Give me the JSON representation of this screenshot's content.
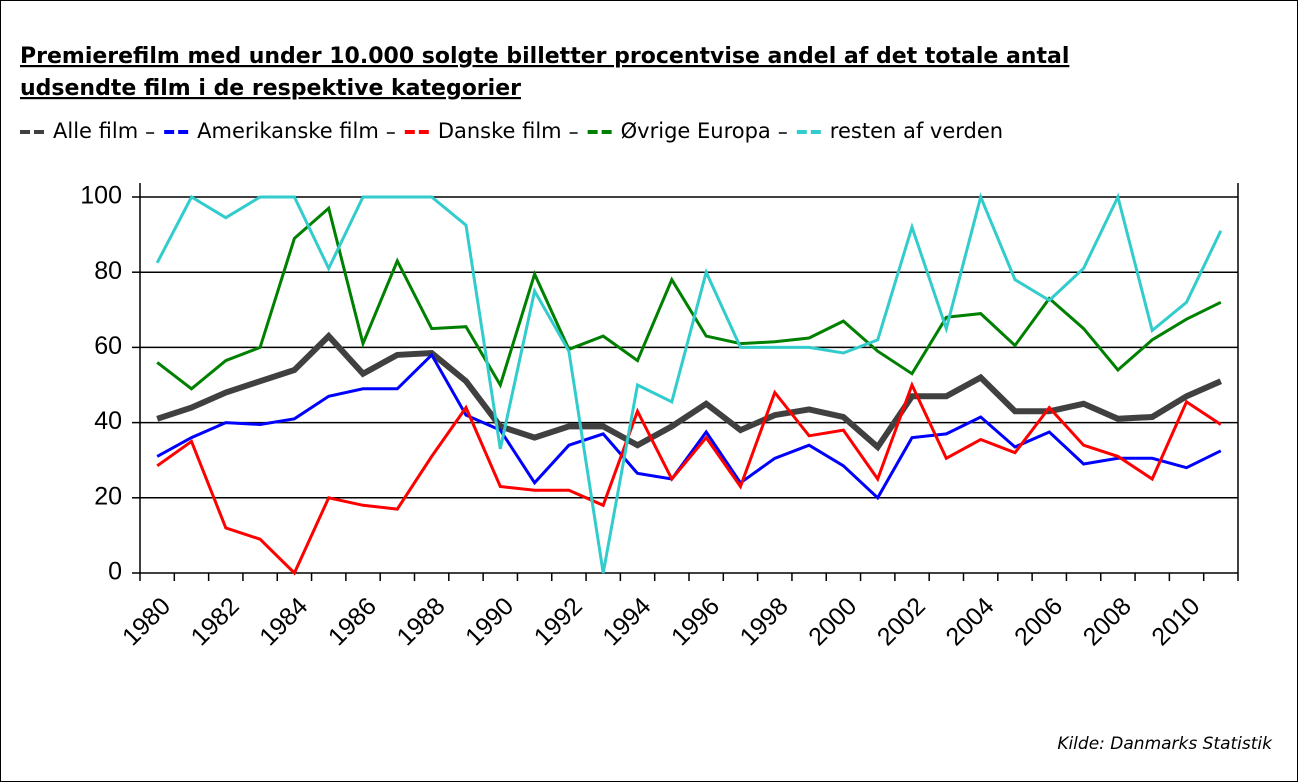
{
  "chart_data": {
    "type": "line",
    "title": [
      "Premierefilm med under 10.000 solgte billetter procentvise andel af det totale antal",
      "udsendte film i de respektive kategorier"
    ],
    "source": "Kilde: Danmarks Statistik",
    "categories": [
      "1980",
      null,
      "1982",
      null,
      "1984",
      null,
      "1986",
      null,
      "1988",
      null,
      "1990",
      null,
      "1992",
      null,
      "1994",
      null,
      "1996",
      null,
      "1998",
      null,
      "2000",
      null,
      "2002",
      null,
      "2004",
      null,
      "2006",
      null,
      "2008",
      null,
      "2010",
      null
    ],
    "ylim": [
      0,
      100
    ],
    "yticks": [
      0,
      20,
      40,
      60,
      80,
      100
    ],
    "grid": true,
    "series": [
      {
        "name": "Alle film",
        "color": "#404040",
        "width": 6,
        "values": [
          41,
          44,
          48,
          51,
          54,
          63,
          53,
          58,
          58.5,
          51,
          39,
          36,
          39,
          39,
          34,
          39,
          45,
          38,
          42,
          43.5,
          41.5,
          33.5,
          47,
          47,
          52,
          43,
          43,
          45,
          41,
          41.5,
          47,
          51
        ]
      },
      {
        "name": "Amerikanske film",
        "color": "#0000ff",
        "width": 3,
        "values": [
          31,
          36,
          40,
          39.5,
          41,
          47,
          49,
          49,
          58,
          42,
          38,
          24,
          34,
          37,
          26.5,
          25,
          37.5,
          24,
          30.5,
          34,
          28.5,
          20,
          36,
          37,
          41.5,
          33.5,
          37.5,
          29,
          30.5,
          30.5,
          28,
          32.5
        ]
      },
      {
        "name": "Danske film",
        "color": "#ff0000",
        "width": 3,
        "values": [
          28.5,
          35,
          12,
          9,
          0,
          20,
          18,
          17,
          31,
          44,
          23,
          22,
          22,
          18,
          43,
          25,
          36,
          23,
          48,
          36.5,
          38,
          25,
          50,
          30.5,
          35.5,
          32,
          44,
          34,
          31,
          25,
          45.5,
          39.5
        ]
      },
      {
        "name": "Øvrige Europa",
        "color": "#008000",
        "width": 3,
        "values": [
          56,
          49,
          56.5,
          60,
          89,
          97,
          61,
          83,
          65,
          65.5,
          50,
          79.5,
          59.5,
          63,
          56.5,
          78,
          63,
          61,
          61.5,
          62.5,
          67,
          59,
          53,
          68,
          69,
          60.5,
          73,
          65,
          54,
          62,
          67.5,
          72
        ]
      },
      {
        "name": "resten af verden",
        "color": "#33cccc",
        "width": 3,
        "values": [
          82.5,
          100,
          94.5,
          100,
          100,
          81,
          100,
          100,
          100,
          92.5,
          33,
          75,
          59,
          0,
          50,
          45.5,
          80,
          60,
          60,
          60,
          58.5,
          62,
          92,
          65,
          100,
          78,
          72.5,
          81,
          100,
          64.5,
          72,
          91
        ]
      }
    ]
  }
}
